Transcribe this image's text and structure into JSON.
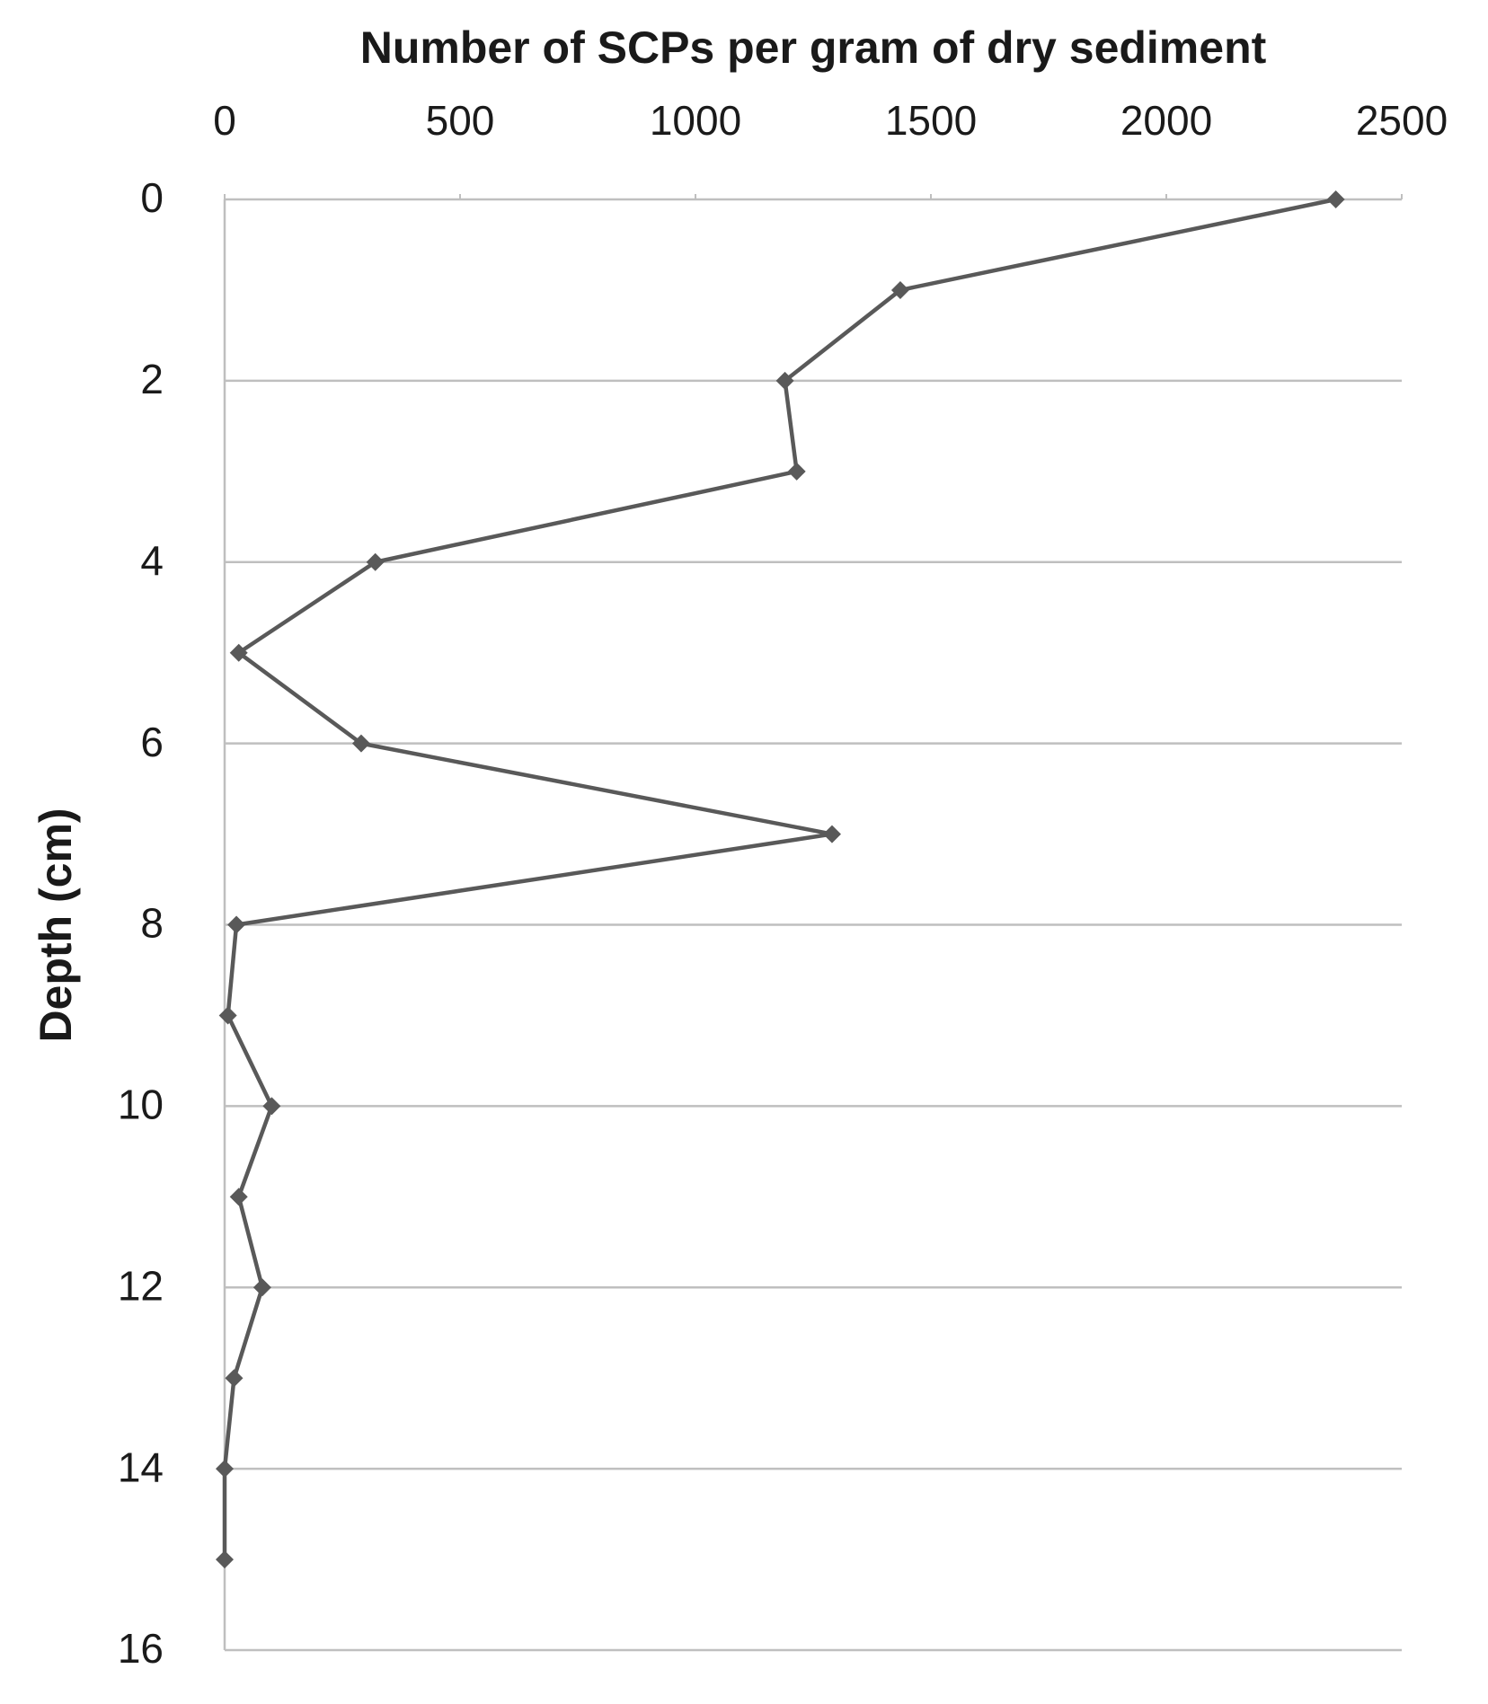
{
  "chart_data": {
    "type": "line",
    "orientation": "horizontal",
    "title": "Number of SCPs per gram of dry sediment",
    "y_label": "Depth (cm)",
    "depth": [
      0,
      1,
      2,
      3,
      4,
      5,
      6,
      7,
      8,
      9,
      10,
      11,
      12,
      13,
      14,
      15
    ],
    "values": [
      2360,
      1435,
      1190,
      1215,
      320,
      30,
      290,
      1290,
      25,
      7,
      100,
      30,
      80,
      20,
      0,
      0
    ],
    "color": "#595959",
    "xlim": [
      0,
      2500
    ],
    "xticks": [
      0,
      500,
      1000,
      1500,
      2000,
      2500
    ],
    "ylim": [
      0,
      16
    ],
    "yticks": [
      0,
      2,
      4,
      6,
      8,
      10,
      12,
      14,
      16
    ],
    "y_inverted": true,
    "x_axis_position": "top",
    "grid": true,
    "markers": true
  }
}
